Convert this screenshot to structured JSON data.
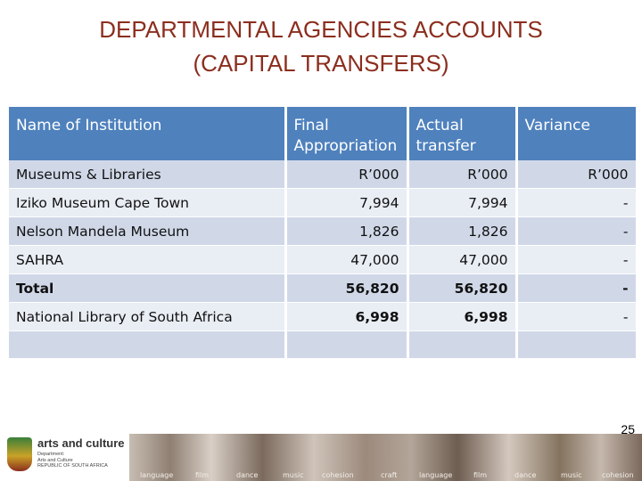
{
  "title": {
    "line1": "DEPARTMENTAL AGENCIES ACCOUNTS",
    "line2": "(CAPITAL TRANSFERS)"
  },
  "table": {
    "headers": [
      "Name of Institution",
      "Final Appropriation",
      "Actual transfer",
      "Variance"
    ],
    "rows": [
      [
        "Museums & Libraries",
        "R’000",
        "R’000",
        "R’000"
      ],
      [
        "Iziko Museum Cape Town",
        "7,994",
        "7,994",
        "-"
      ],
      [
        "Nelson Mandela Museum",
        "1,826",
        "1,826",
        "-"
      ],
      [
        "SAHRA",
        "47,000",
        "47,000",
        "-"
      ],
      [
        "Total",
        "56,820",
        "56,820",
        "-"
      ],
      [
        "National Library of South Africa",
        "6,998",
        "6,998",
        "-"
      ],
      [
        "",
        "",
        "",
        ""
      ]
    ]
  },
  "page_number": "25",
  "footer": {
    "brand": "arts and culture",
    "dept_text": "Department:\nArts and Culture\nREPUBLIC OF SOUTH AFRICA",
    "tiles": [
      "language",
      "film",
      "dance",
      "music",
      "cohesion",
      "craft",
      "language",
      "film",
      "dance",
      "music",
      "cohesion"
    ]
  }
}
